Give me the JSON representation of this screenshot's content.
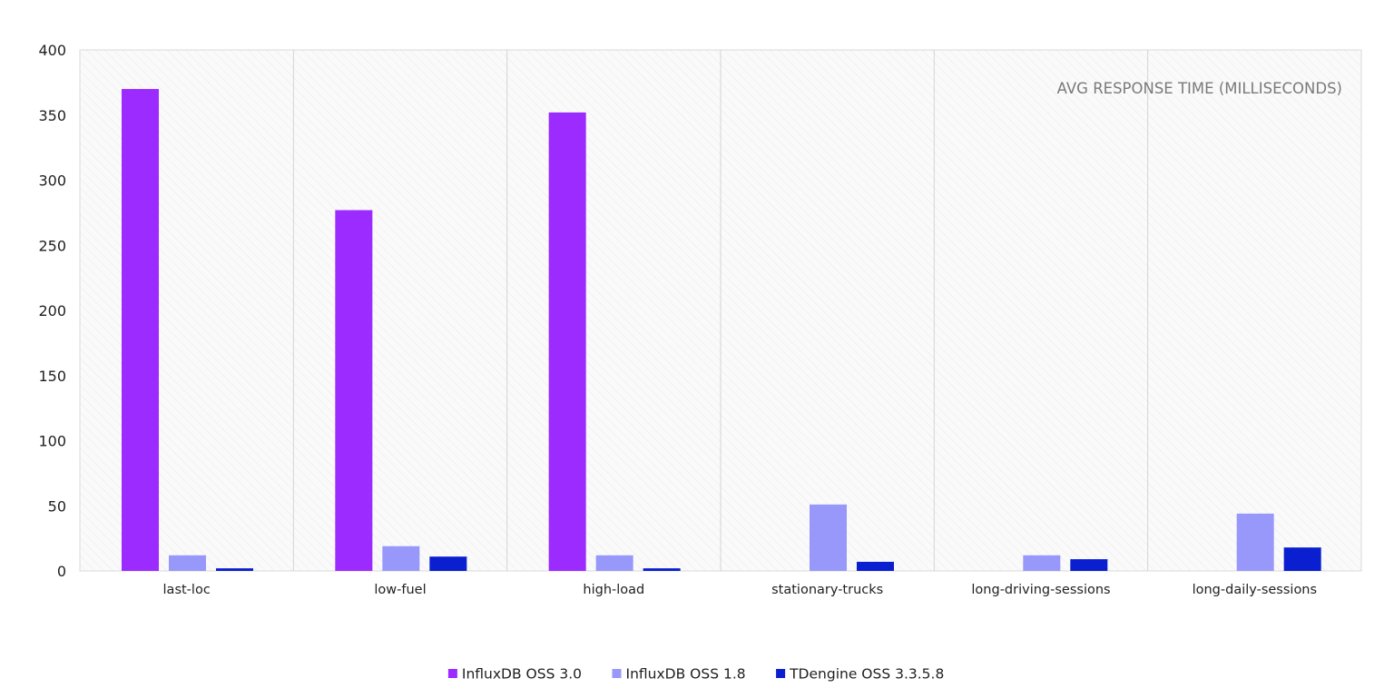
{
  "chart_data": {
    "type": "bar",
    "title": "",
    "xlabel": "",
    "ylabel": "",
    "annotation": "AVG RESPONSE TIME (MILLISECONDS)",
    "categories": [
      "last-loc",
      "low-fuel",
      "high-load",
      "stationary-trucks",
      "long-driving-sessions",
      "long-daily-sessions"
    ],
    "series": [
      {
        "name": "InfluxDB OSS 3.0",
        "color": "#9b2bff",
        "values": [
          370,
          277,
          352,
          0,
          0,
          0
        ]
      },
      {
        "name": "InfluxDB OSS 1.8",
        "color": "#9898fb",
        "values": [
          12,
          19,
          12,
          51,
          12,
          44
        ]
      },
      {
        "name": "TDengine OSS 3.3.5.8",
        "color": "#0a1fcf",
        "values": [
          2,
          11,
          2,
          7,
          9,
          18
        ]
      }
    ],
    "ylim": [
      0,
      400
    ],
    "yticks": [
      0,
      50,
      100,
      150,
      200,
      250,
      300,
      350,
      400
    ],
    "grid": "vertical category separators",
    "legend_position": "bottom-center"
  }
}
